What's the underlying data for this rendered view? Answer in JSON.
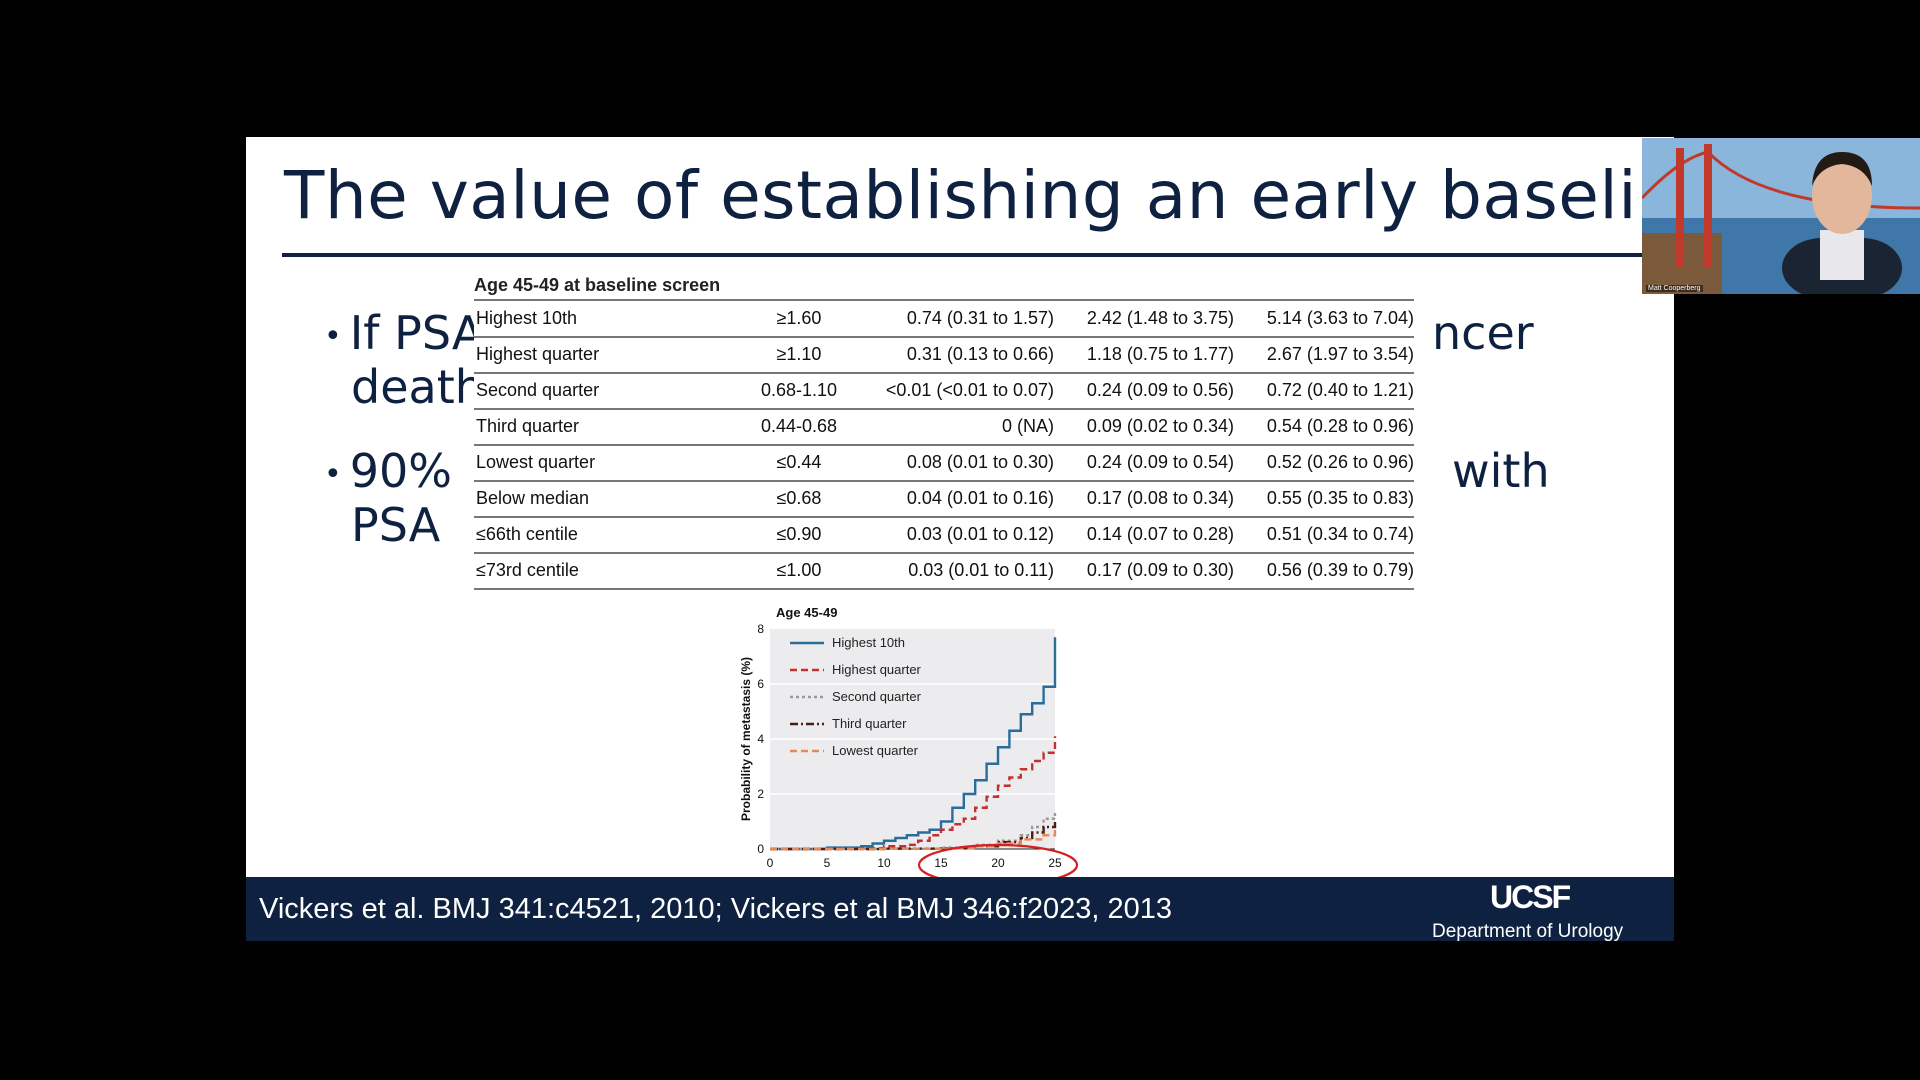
{
  "slide": {
    "title": "The value of establishing an early baseline",
    "bullet1_line1": "If PSA",
    "bullet1_tail": "ncer",
    "bullet1_line2": "death",
    "bullet2_line1": "90%",
    "bullet2_tail": "with",
    "bullet2_line2": "PSA"
  },
  "table": {
    "caption": "Age 45-49 at baseline screen",
    "rows": [
      [
        "Highest 10th",
        "≥1.60",
        "0.74 (0.31 to 1.57)",
        "2.42 (1.48 to 3.75)",
        "5.14 (3.63 to 7.04)"
      ],
      [
        "Highest quarter",
        "≥1.10",
        "0.31 (0.13 to 0.66)",
        "1.18 (0.75 to 1.77)",
        "2.67 (1.97 to 3.54)"
      ],
      [
        "Second quarter",
        "0.68-1.10",
        "<0.01 (<0.01 to 0.07)",
        "0.24 (0.09 to 0.56)",
        "0.72 (0.40 to 1.21)"
      ],
      [
        "Third quarter",
        "0.44-0.68",
        "0 (NA)",
        "0.09 (0.02 to 0.34)",
        "0.54 (0.28 to 0.96)"
      ],
      [
        "Lowest quarter",
        "≤0.44",
        "0.08 (0.01 to 0.30)",
        "0.24 (0.09 to 0.54)",
        "0.52 (0.26 to 0.96)"
      ],
      [
        "Below median",
        "≤0.68",
        "0.04 (0.01 to 0.16)",
        "0.17 (0.08 to 0.34)",
        "0.55 (0.35 to 0.83)"
      ],
      [
        "≤66th centile",
        "≤0.90",
        "0.03 (0.01 to 0.12)",
        "0.14 (0.07 to 0.28)",
        "0.51 (0.34 to 0.74)"
      ],
      [
        "≤73rd centile",
        "≤1.00",
        "0.03 (0.01 to 0.11)",
        "0.17 (0.09 to 0.30)",
        "0.56 (0.39 to 0.79)"
      ]
    ]
  },
  "chart_data": {
    "type": "line",
    "title": "Age 45-49",
    "xlabel": "",
    "ylabel": "Probability of metastasis (%)",
    "xlim": [
      0,
      25
    ],
    "ylim": [
      0,
      8
    ],
    "xticks": [
      "0",
      "5",
      "10",
      "15",
      "20",
      "25"
    ],
    "yticks": [
      "0",
      "2",
      "4",
      "6",
      "8"
    ],
    "legend_position": "top-left",
    "grid": true,
    "series": [
      {
        "name": "Highest 10th",
        "color": "#2a6d99",
        "dash": "solid",
        "x": [
          0,
          5,
          8,
          9,
          10,
          11,
          12,
          13,
          14,
          15,
          16,
          17,
          18,
          19,
          20,
          21,
          22,
          23,
          24,
          25
        ],
        "y": [
          0,
          0.05,
          0.1,
          0.2,
          0.3,
          0.4,
          0.5,
          0.6,
          0.7,
          1.0,
          1.5,
          2.0,
          2.5,
          3.1,
          3.7,
          4.3,
          4.9,
          5.3,
          5.9,
          7.7
        ]
      },
      {
        "name": "Highest quarter",
        "color": "#c3312f",
        "dash": "dashed",
        "x": [
          0,
          5,
          10,
          12,
          13,
          14,
          15,
          16,
          17,
          18,
          19,
          20,
          21,
          22,
          23,
          24,
          25
        ],
        "y": [
          0,
          0.03,
          0.1,
          0.15,
          0.3,
          0.5,
          0.7,
          0.9,
          1.1,
          1.5,
          1.9,
          2.3,
          2.6,
          2.9,
          3.2,
          3.5,
          4.1
        ]
      },
      {
        "name": "Second quarter",
        "color": "#9a9a9a",
        "dash": "dotted",
        "x": [
          0,
          10,
          15,
          18,
          20,
          22,
          23,
          24,
          25
        ],
        "y": [
          0,
          0.02,
          0.05,
          0.15,
          0.3,
          0.5,
          0.8,
          1.1,
          1.4
        ]
      },
      {
        "name": "Third quarter",
        "color": "#4a2018",
        "dash": "dashdot",
        "x": [
          0,
          10,
          15,
          18,
          20,
          22,
          23,
          24,
          25
        ],
        "y": [
          0,
          0.01,
          0.03,
          0.1,
          0.25,
          0.4,
          0.6,
          0.8,
          1.1
        ]
      },
      {
        "name": "Lowest quarter",
        "color": "#e58a5a",
        "dash": "dashed",
        "x": [
          0,
          10,
          15,
          18,
          20,
          22,
          24,
          25
        ],
        "y": [
          0,
          0.01,
          0.02,
          0.1,
          0.2,
          0.35,
          0.5,
          0.7
        ]
      }
    ]
  },
  "footer": {
    "citation": "Vickers et al. BMJ 341:c4521, 2010; Vickers et al BMJ 346:f2023, 2013",
    "logo": "UCSF",
    "department": "Department of Urology"
  },
  "webcam": {
    "participant": "Matt Cooperberg"
  }
}
